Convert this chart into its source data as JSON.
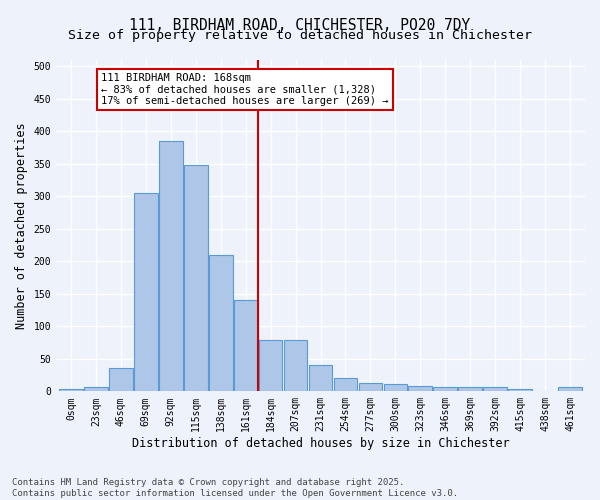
{
  "title_line1": "111, BIRDHAM ROAD, CHICHESTER, PO20 7DY",
  "title_line2": "Size of property relative to detached houses in Chichester",
  "xlabel": "Distribution of detached houses by size in Chichester",
  "ylabel": "Number of detached properties",
  "bar_labels": [
    "0sqm",
    "23sqm",
    "46sqm",
    "69sqm",
    "92sqm",
    "115sqm",
    "138sqm",
    "161sqm",
    "184sqm",
    "207sqm",
    "231sqm",
    "254sqm",
    "277sqm",
    "300sqm",
    "323sqm",
    "346sqm",
    "369sqm",
    "392sqm",
    "415sqm",
    "438sqm",
    "461sqm"
  ],
  "bar_values": [
    4,
    6,
    36,
    305,
    385,
    348,
    210,
    140,
    79,
    79,
    41,
    20,
    13,
    11,
    8,
    6,
    6,
    6,
    4,
    1,
    6
  ],
  "bar_color": "#aec6e8",
  "bar_edge_color": "#5b9bd5",
  "vline_x": 7.5,
  "vline_color": "#cc0000",
  "annotation_text": "111 BIRDHAM ROAD: 168sqm\n← 83% of detached houses are smaller (1,328)\n17% of semi-detached houses are larger (269) →",
  "annotation_box_color": "#ffffff",
  "annotation_box_edge_color": "#cc0000",
  "ylim": [
    0,
    510
  ],
  "yticks": [
    0,
    50,
    100,
    150,
    200,
    250,
    300,
    350,
    400,
    450,
    500
  ],
  "footer_line1": "Contains HM Land Registry data © Crown copyright and database right 2025.",
  "footer_line2": "Contains public sector information licensed under the Open Government Licence v3.0.",
  "bg_color": "#eef2fa",
  "grid_color": "#ffffff",
  "title_fontsize": 10.5,
  "subtitle_fontsize": 9.5,
  "tick_fontsize": 7,
  "axis_label_fontsize": 8.5,
  "footer_fontsize": 6.5,
  "annotation_fontsize": 7.5
}
